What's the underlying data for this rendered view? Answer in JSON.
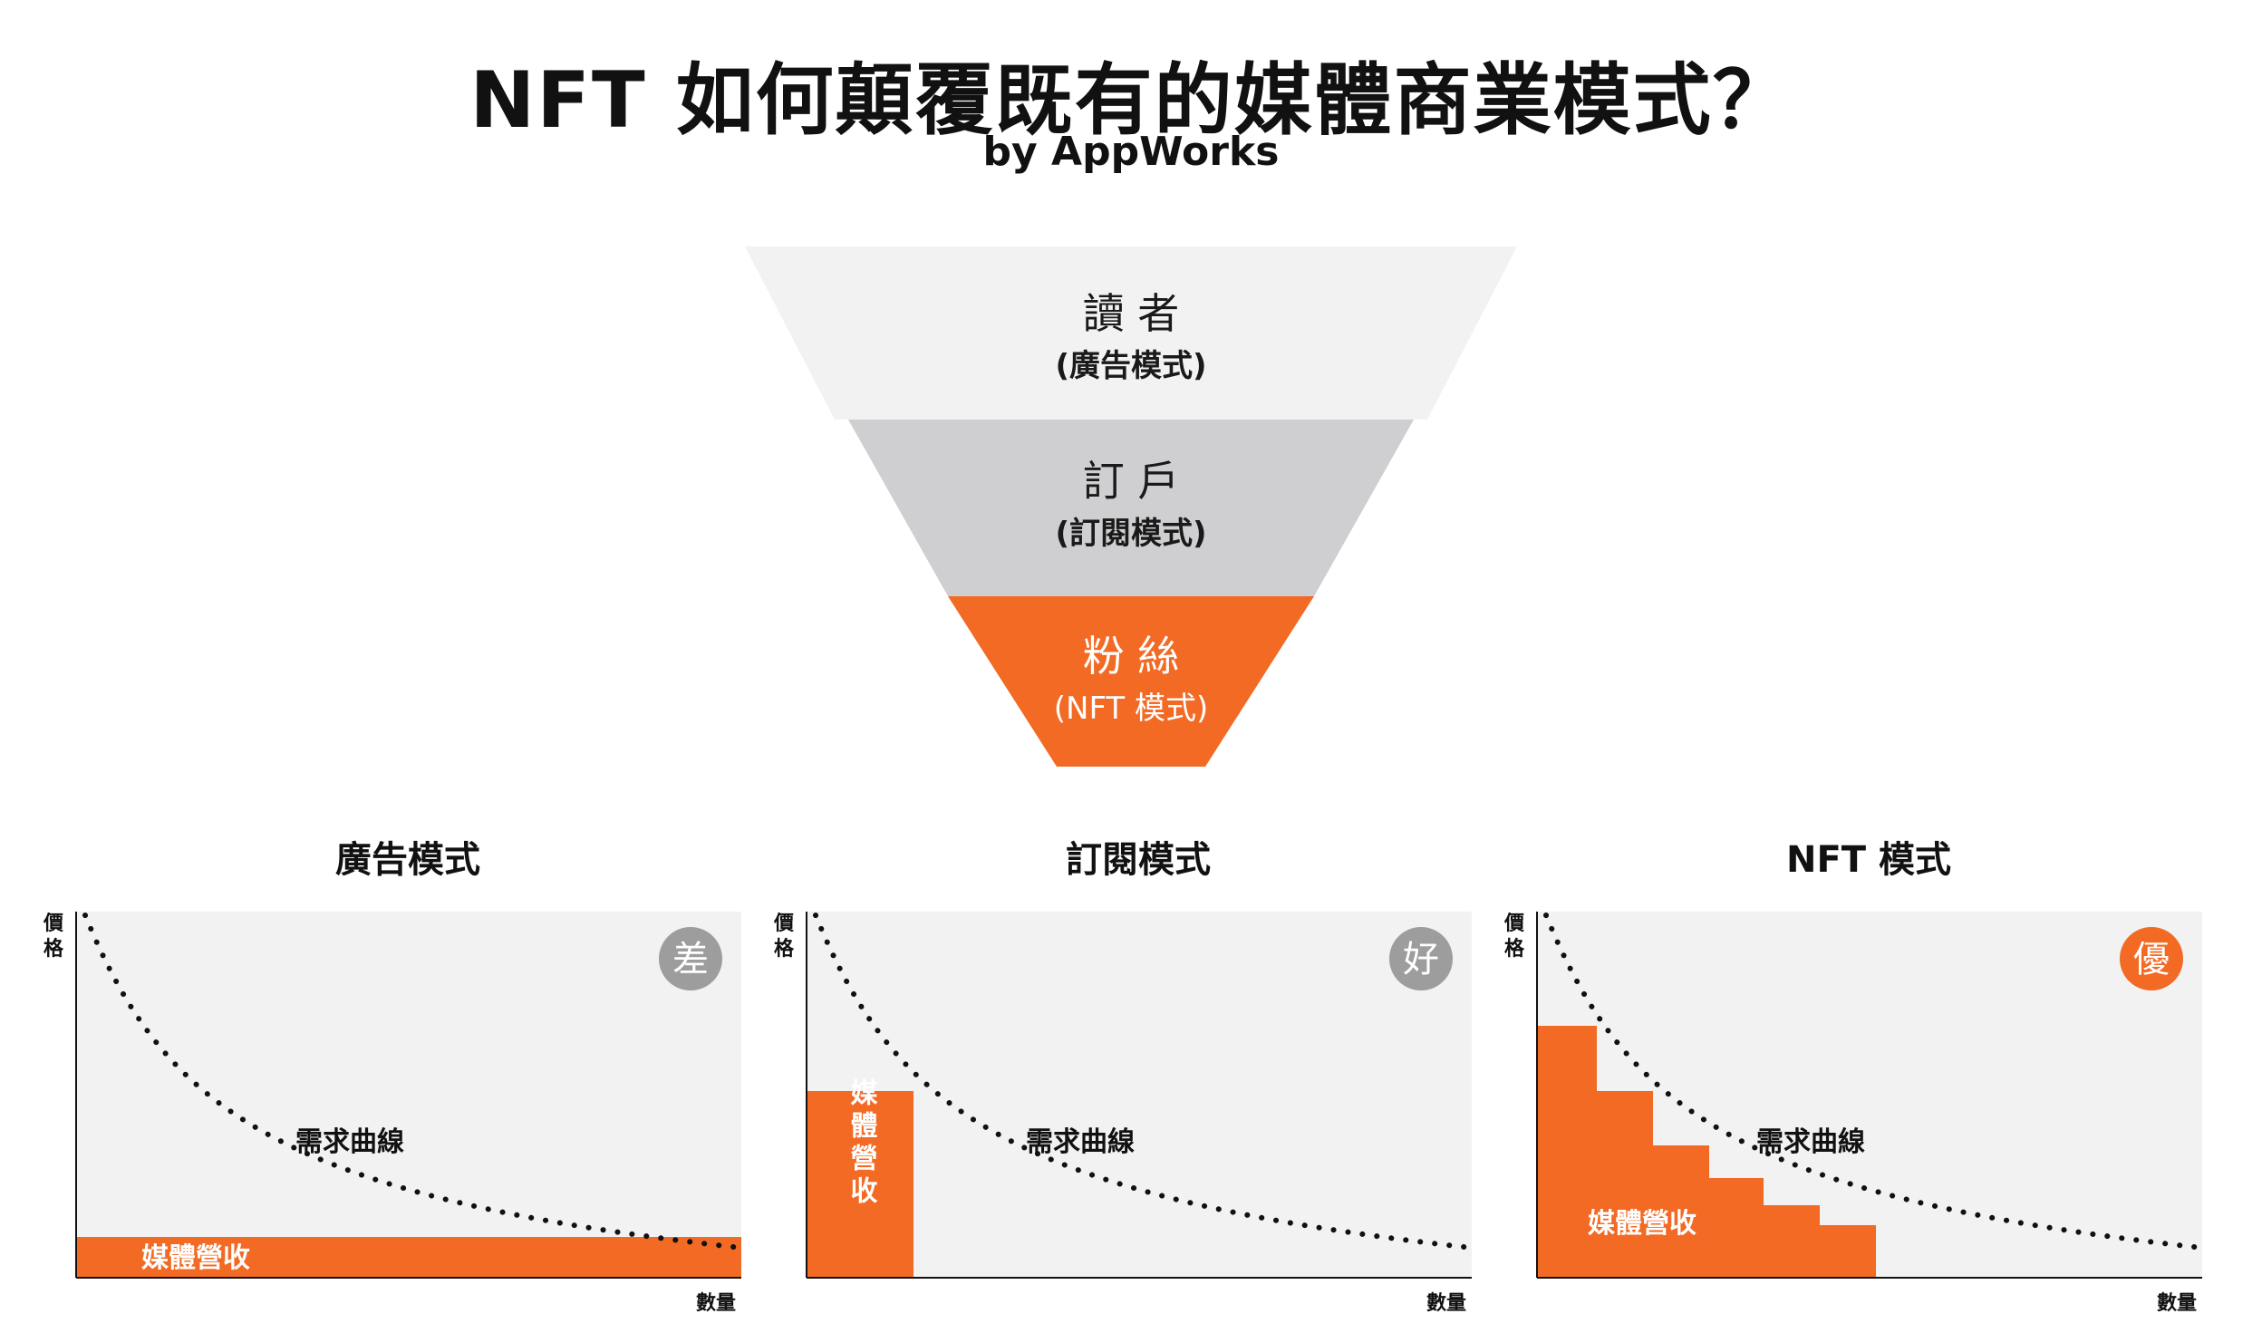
{
  "header": {
    "title": "NFT 如何顛覆既有的媒體商業模式？",
    "subtitle": "by AppWorks"
  },
  "funnel": [
    {
      "label": "讀 者",
      "sub": "(廣告模式)",
      "color": "#f2f2f3"
    },
    {
      "label": "訂 戶",
      "sub": "(訂閱模式)",
      "color": "#cfcfd1"
    },
    {
      "label": "粉 絲",
      "sub": "(NFT 模式)",
      "color": "#f26a24"
    }
  ],
  "colors": {
    "accent": "#f26a24",
    "panel": "#f2f2f3",
    "badge_gray": "#9d9d9d"
  },
  "charts": [
    {
      "title": "廣告模式",
      "badge": "差",
      "y_label": [
        "價",
        "格"
      ],
      "x_label": "數量",
      "curve_label": "需求曲線",
      "revenue_label": "媒體營收",
      "revenue_shape": "flat-bar"
    },
    {
      "title": "訂閱模式",
      "badge": "好",
      "y_label": [
        "價",
        "格"
      ],
      "x_label": "數量",
      "curve_label": "需求曲線",
      "revenue_label": "媒體營收",
      "revenue_shape": "tall-bar"
    },
    {
      "title": "NFT 模式",
      "badge": "優",
      "y_label": [
        "價",
        "格"
      ],
      "x_label": "數量",
      "curve_label": "需求曲線",
      "revenue_label": "媒體營收",
      "revenue_shape": "staircase"
    }
  ]
}
